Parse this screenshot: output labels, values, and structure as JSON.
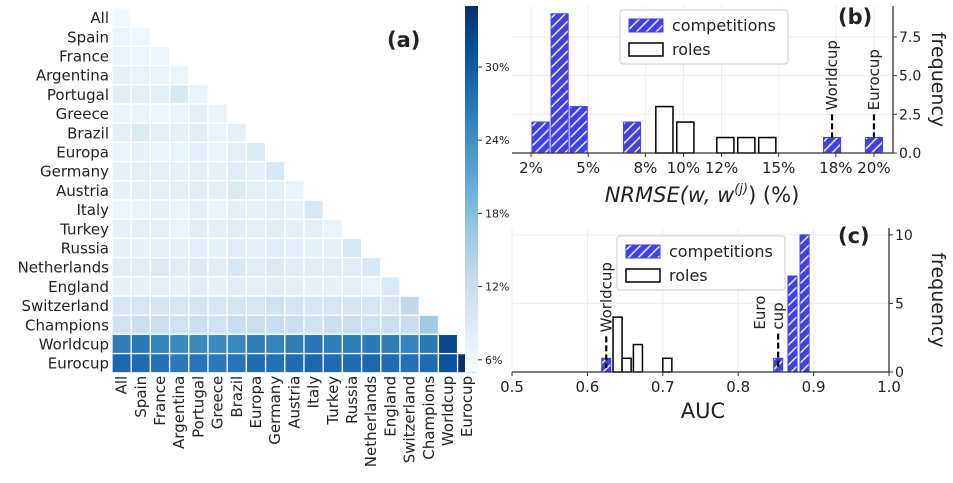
{
  "panel_labels": [
    "(a)",
    "(b)",
    "(c)"
  ],
  "chart_data": [
    {
      "type": "heatmap",
      "panel": "(a)",
      "labels": [
        "All",
        "Spain",
        "France",
        "Argentina",
        "Portugal",
        "Greece",
        "Brazil",
        "Europa",
        "Germany",
        "Austria",
        "Italy",
        "Turkey",
        "Russia",
        "Netherlands",
        "England",
        "Switzerland",
        "Champions",
        "Worldcup",
        "Eurocup"
      ],
      "triangle": "lower",
      "colorbar": {
        "vmin": 5,
        "vmax": 35,
        "ticks": [
          6,
          12,
          18,
          24,
          30
        ],
        "tick_labels": [
          "6%",
          "12%",
          "18%",
          "24%",
          "30%"
        ],
        "colors": [
          "#f7fbff",
          "#deebf7",
          "#c6dbef",
          "#9ecae1",
          "#6baed6",
          "#4292c6",
          "#2171b5",
          "#08519c",
          "#08306b"
        ]
      },
      "values": [
        [
          5.5
        ],
        [
          6.5,
          6.0
        ],
        [
          7.0,
          6.5,
          6.5
        ],
        [
          7.5,
          7.0,
          7.0,
          6.5
        ],
        [
          8.5,
          8.0,
          8.0,
          9.5,
          7.0
        ],
        [
          7.0,
          7.0,
          6.5,
          7.0,
          8.0,
          7.0
        ],
        [
          8.0,
          9.0,
          8.0,
          7.5,
          8.5,
          7.0,
          7.5
        ],
        [
          7.0,
          7.5,
          7.0,
          7.0,
          8.0,
          7.0,
          8.0,
          9.0
        ],
        [
          7.5,
          8.0,
          8.0,
          7.5,
          8.0,
          7.5,
          8.5,
          7.5,
          9.5
        ],
        [
          7.5,
          8.0,
          8.0,
          8.0,
          8.5,
          8.0,
          9.0,
          8.0,
          8.0,
          7.0
        ],
        [
          6.5,
          7.0,
          7.5,
          7.0,
          8.0,
          7.0,
          8.0,
          7.5,
          8.0,
          7.5,
          9.5
        ],
        [
          7.5,
          8.0,
          8.0,
          7.0,
          8.5,
          8.0,
          8.5,
          8.0,
          8.5,
          8.0,
          8.0,
          7.0
        ],
        [
          7.5,
          7.5,
          8.0,
          7.5,
          8.0,
          7.5,
          8.5,
          8.0,
          8.5,
          8.0,
          7.5,
          7.5,
          10.0
        ],
        [
          8.5,
          8.5,
          9.0,
          8.5,
          9.0,
          8.5,
          9.5,
          8.5,
          9.0,
          8.5,
          8.5,
          8.5,
          8.5,
          9.5
        ],
        [
          7.5,
          7.5,
          8.0,
          7.5,
          8.5,
          7.5,
          8.5,
          8.0,
          8.5,
          8.0,
          7.5,
          7.5,
          8.0,
          7.0,
          9.0
        ],
        [
          10.0,
          10.0,
          10.5,
          10.0,
          10.5,
          10.0,
          10.5,
          10.0,
          11.0,
          10.5,
          10.0,
          10.0,
          10.5,
          10.0,
          10.0,
          13.0
        ],
        [
          11.0,
          11.5,
          11.5,
          11.0,
          11.5,
          11.0,
          12.0,
          11.5,
          12.0,
          11.5,
          11.0,
          11.5,
          11.5,
          11.0,
          11.5,
          12.0,
          16.0
        ],
        [
          26.0,
          26.5,
          25.5,
          24.5,
          25.0,
          24.5,
          25.0,
          26.0,
          25.5,
          26.0,
          27.0,
          26.0,
          26.0,
          26.5,
          26.0,
          25.5,
          26.5,
          32.5
        ],
        [
          28.5,
          28.0,
          27.5,
          26.5,
          27.0,
          26.5,
          27.0,
          28.0,
          27.5,
          28.0,
          28.5,
          28.0,
          28.0,
          28.5,
          28.0,
          27.5,
          28.0,
          31.0,
          35.0
        ]
      ]
    },
    {
      "type": "bar",
      "panel": "(b)",
      "xlabel": "NRMSE(w, w^(j)) (%)",
      "xlabel_main": "NRMSE(w, w",
      "xlabel_sup": "(j)",
      "xlabel_tail": ") (%)",
      "ylabel": "frequency",
      "xlim": [
        1,
        21
      ],
      "ylim": [
        0,
        9.5
      ],
      "xticks": [
        2,
        5,
        8,
        10,
        12,
        15,
        18,
        20
      ],
      "xtick_labels": [
        "2%",
        "5%",
        "8%",
        "10%",
        "12%",
        "15%",
        "18%",
        "20%"
      ],
      "yticks": [
        0,
        2.5,
        5,
        7.5
      ],
      "ytick_labels": [
        "0.0",
        "2.5",
        "5.0",
        "7.5"
      ],
      "bar_width": 0.9,
      "series": [
        {
          "name": "competitions",
          "style": "hatched",
          "color": "#4040e6",
          "x": [
            2.5,
            3.5,
            4.5,
            7.3,
            17.8,
            20.0
          ],
          "values": [
            2,
            9,
            3,
            2,
            1,
            1
          ]
        },
        {
          "name": "roles",
          "style": "outline",
          "color": "#000000",
          "x": [
            9.0,
            10.1,
            12.2,
            13.3,
            14.4
          ],
          "values": [
            3,
            2,
            1,
            1,
            1
          ]
        }
      ],
      "annotations": [
        {
          "text": "Worldcup",
          "x": 17.8,
          "y_from": 2.5,
          "y_to": 1.0
        },
        {
          "text": "Eurocup",
          "x": 20.0,
          "y_from": 2.5,
          "y_to": 1.0
        }
      ],
      "legend": "top-center",
      "grid": true
    },
    {
      "type": "bar",
      "panel": "(c)",
      "xlabel": "AUC",
      "ylabel": "frequency",
      "xlim": [
        0.5,
        1.0
      ],
      "ylim": [
        0,
        10.5
      ],
      "xticks": [
        0.5,
        0.6,
        0.7,
        0.8,
        0.9,
        1.0
      ],
      "xtick_labels": [
        "0.5",
        "0.6",
        "0.7",
        "0.8",
        "0.9",
        "1.0"
      ],
      "yticks": [
        0,
        5,
        10
      ],
      "ytick_labels": [
        "0",
        "5",
        "10"
      ],
      "bar_width": 0.012,
      "series": [
        {
          "name": "competitions",
          "style": "hatched",
          "color": "#4040e6",
          "x": [
            0.625,
            0.853,
            0.872,
            0.888
          ],
          "values": [
            1,
            1,
            7,
            10
          ]
        },
        {
          "name": "roles",
          "style": "outline",
          "color": "#000000",
          "x": [
            0.64,
            0.652,
            0.667,
            0.706
          ],
          "values": [
            4,
            1,
            2,
            1
          ]
        }
      ],
      "annotations": [
        {
          "text": "Worldcup",
          "lines": [
            "Worldcup"
          ],
          "x": 0.625,
          "y_from": 2.6,
          "y_to": 0.3
        },
        {
          "text": "Euro cup",
          "lines": [
            "Euro",
            "cup"
          ],
          "x": 0.853,
          "y_from": 2.8,
          "y_to": 0.3
        }
      ],
      "legend": "top-center",
      "grid": true
    }
  ]
}
